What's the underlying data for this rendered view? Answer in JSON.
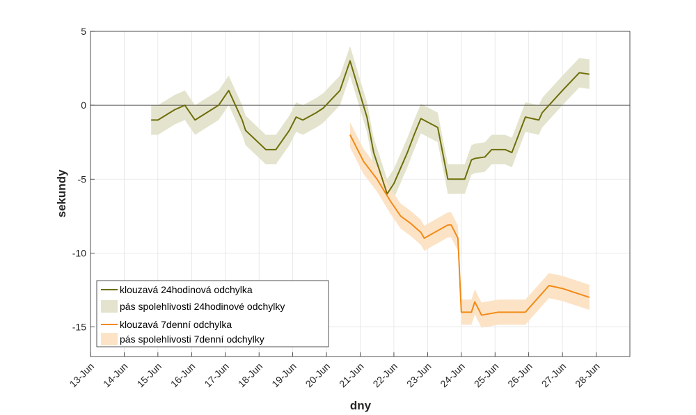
{
  "chart_data": {
    "type": "line",
    "title": "",
    "xlabel": "dny",
    "ylabel": "sekundy",
    "xlim": [
      0,
      16
    ],
    "ylim": [
      -17,
      5
    ],
    "grid": true,
    "legend_position": "bottom-left",
    "x_ticks": [
      {
        "x": 0,
        "label": "13-Jun"
      },
      {
        "x": 1,
        "label": "14-Jun"
      },
      {
        "x": 2,
        "label": "15-Jun"
      },
      {
        "x": 3,
        "label": "16-Jun"
      },
      {
        "x": 4,
        "label": "17-Jun"
      },
      {
        "x": 5,
        "label": "18-Jun"
      },
      {
        "x": 6,
        "label": "19-Jun"
      },
      {
        "x": 7,
        "label": "20-Jun"
      },
      {
        "x": 8,
        "label": "21-Jun"
      },
      {
        "x": 9,
        "label": "22-Jun"
      },
      {
        "x": 10,
        "label": "23-Jun"
      },
      {
        "x": 11,
        "label": "24-Jun"
      },
      {
        "x": 12,
        "label": "25-Jun"
      },
      {
        "x": 13,
        "label": "26-Jun"
      },
      {
        "x": 14,
        "label": "27-Jun"
      },
      {
        "x": 15,
        "label": "28-Jun"
      }
    ],
    "y_ticks": [
      {
        "y": 5,
        "label": "5"
      },
      {
        "y": 0,
        "label": "0"
      },
      {
        "y": -5,
        "label": "-5"
      },
      {
        "y": -10,
        "label": "-10"
      },
      {
        "y": -15,
        "label": "-15"
      }
    ],
    "zero_line": 0,
    "series": [
      {
        "name": "klouzavá 24hodinová odchylka",
        "band_name": "pás spolehlivosti 24hodinové odchylky",
        "color": "#6E6E0A",
        "band_color": "#E4E4CE",
        "band_halfwidth": 1.0,
        "x": [
          1.8,
          2.0,
          2.5,
          2.8,
          3.1,
          3.8,
          4.1,
          4.5,
          4.6,
          5.2,
          5.5,
          5.9,
          6.1,
          6.3,
          6.7,
          6.9,
          7.4,
          7.7,
          8.2,
          8.4,
          8.8,
          9.0,
          9.4,
          9.6,
          9.8,
          10.3,
          10.6,
          10.8,
          11.1,
          11.3,
          11.4,
          11.7,
          11.9,
          12.3,
          12.5,
          12.7,
          12.9,
          13.3,
          13.4,
          14.0,
          14.5,
          14.8
        ],
        "values": [
          -1.0,
          -1.0,
          -0.3,
          0.0,
          -1.0,
          -0.0,
          1.0,
          -1.0,
          -1.7,
          -3.0,
          -3.0,
          -1.7,
          -0.8,
          -1.0,
          -0.5,
          -0.2,
          1.0,
          3.0,
          -0.8,
          -3.2,
          -6.0,
          -5.3,
          -3.2,
          -2.0,
          -0.9,
          -1.5,
          -5.0,
          -5.0,
          -5.0,
          -3.7,
          -3.6,
          -3.5,
          -3.0,
          -3.0,
          -3.2,
          -2.0,
          -0.8,
          -1.0,
          -0.5,
          1.0,
          2.2,
          2.1
        ]
      },
      {
        "name": "klouzavá 7denní odchylka",
        "band_name": "pás spolehlivosti 7denní odchylky",
        "color": "#F28A16",
        "band_color": "#FCE3C6",
        "band_halfwidth": 0.85,
        "x": [
          7.7,
          8.1,
          8.5,
          8.9,
          9.2,
          9.5,
          9.6,
          9.8,
          9.9,
          10.6,
          10.7,
          10.9,
          11.0,
          11.3,
          11.4,
          11.6,
          12.1,
          12.6,
          12.9,
          13.6,
          14.0,
          14.4,
          14.8
        ],
        "values": [
          -2.0,
          -3.8,
          -5.0,
          -6.5,
          -7.5,
          -8.0,
          -8.2,
          -8.6,
          -9.0,
          -8.1,
          -8.1,
          -9.0,
          -14.0,
          -14.0,
          -13.3,
          -14.2,
          -14.0,
          -14.0,
          -14.0,
          -12.2,
          -12.4,
          -12.7,
          -13.0
        ]
      }
    ]
  }
}
